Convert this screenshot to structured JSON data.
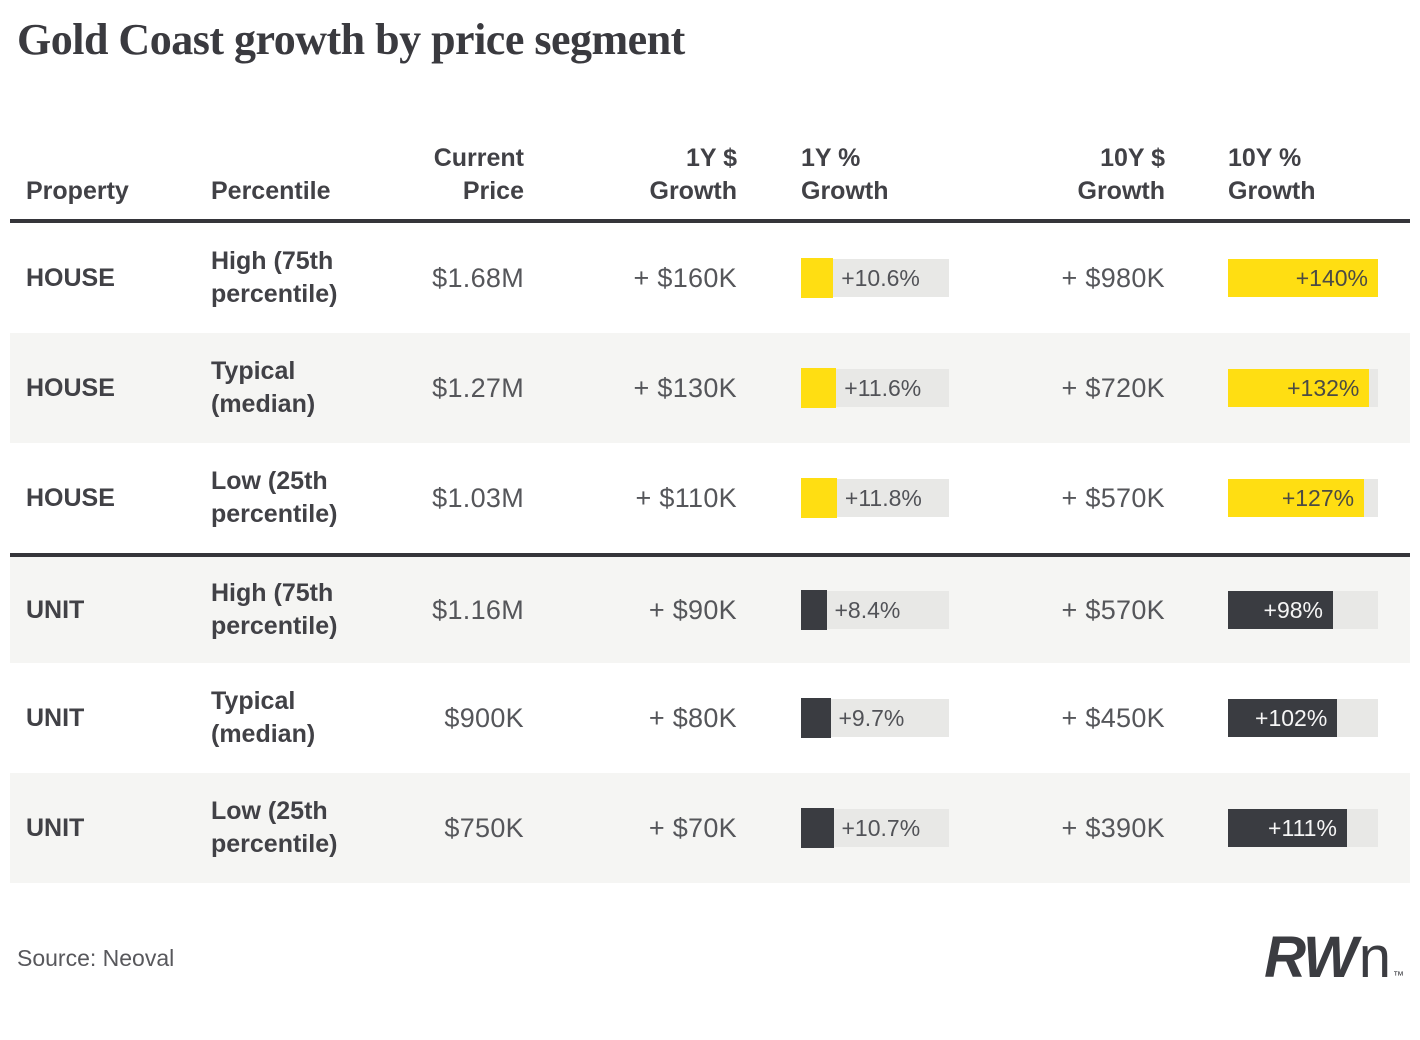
{
  "title": "Gold Coast growth by price segment",
  "source": "Source: Neoval",
  "logo": {
    "bold": "RW",
    "light": "n",
    "tm": "™"
  },
  "colors": {
    "house_bar": "#ffde12",
    "unit_bar": "#3a3c41",
    "bar_track": "#e8e8e6",
    "row_alt_bg": "#f5f5f3",
    "rule": "#35353a",
    "house_bar_label": "#4b4b44",
    "unit_bar_label": "#f5f5f5",
    "value_text": "#55565a",
    "heading_text": "#414146"
  },
  "header_cols": [
    {
      "line1": "",
      "line2": "Property"
    },
    {
      "line1": "",
      "line2": "Percentile"
    },
    {
      "line1": "Current",
      "line2": "Price"
    },
    {
      "line1": "1Y $",
      "line2": "Growth"
    },
    {
      "line1": "1Y %",
      "line2": "Growth"
    },
    {
      "line1": "10Y $",
      "line2": "Growth"
    },
    {
      "line1": "10Y %",
      "line2": "Growth"
    }
  ],
  "chart_data": {
    "type": "table",
    "title": "Gold Coast growth by price segment",
    "source": "Neoval",
    "columns": [
      "Property",
      "Percentile",
      "Current Price",
      "1Y $ Growth",
      "1Y % Growth",
      "10Y $ Growth",
      "10Y % Growth"
    ],
    "bar_scale_max": {
      "growth_1y_pct": 48.7,
      "growth_10y_pct": 140
    },
    "legend": "yellow bars = HOUSE, charcoal bars = UNIT",
    "rows": [
      {
        "property": "HOUSE",
        "segment": "house",
        "percentile": "High (75th percentile)",
        "current_price": "$1.68M",
        "growth_1y_dollar": "+ $160K",
        "growth_1y_pct": 10.6,
        "growth_1y_pct_label": "+10.6%",
        "growth_10y_dollar": "+ $980K",
        "growth_10y_pct": 140,
        "growth_10y_pct_label": "+140%"
      },
      {
        "property": "HOUSE",
        "segment": "house",
        "percentile": "Typical (median)",
        "current_price": "$1.27M",
        "growth_1y_dollar": "+ $130K",
        "growth_1y_pct": 11.6,
        "growth_1y_pct_label": "+11.6%",
        "growth_10y_dollar": "+ $720K",
        "growth_10y_pct": 132,
        "growth_10y_pct_label": "+132%"
      },
      {
        "property": "HOUSE",
        "segment": "house",
        "percentile": "Low (25th percentile)",
        "current_price": "$1.03M",
        "growth_1y_dollar": "+ $110K",
        "growth_1y_pct": 11.8,
        "growth_1y_pct_label": "+11.8%",
        "growth_10y_dollar": "+ $570K",
        "growth_10y_pct": 127,
        "growth_10y_pct_label": "+127%"
      },
      {
        "property": "UNIT",
        "segment": "unit",
        "percentile": "High (75th percentile)",
        "current_price": "$1.16M",
        "growth_1y_dollar": "+ $90K",
        "growth_1y_pct": 8.4,
        "growth_1y_pct_label": "+8.4%",
        "growth_10y_dollar": "+ $570K",
        "growth_10y_pct": 98,
        "growth_10y_pct_label": "+98%"
      },
      {
        "property": "UNIT",
        "segment": "unit",
        "percentile": "Typical (median)",
        "current_price": "$900K",
        "growth_1y_dollar": "+ $80K",
        "growth_1y_pct": 9.7,
        "growth_1y_pct_label": "+9.7%",
        "growth_10y_dollar": "+ $450K",
        "growth_10y_pct": 102,
        "growth_10y_pct_label": "+102%"
      },
      {
        "property": "UNIT",
        "segment": "unit",
        "percentile": "Low (25th percentile)",
        "current_price": "$750K",
        "growth_1y_dollar": "+ $70K",
        "growth_1y_pct": 10.7,
        "growth_1y_pct_label": "+10.7%",
        "growth_10y_dollar": "+ $390K",
        "growth_10y_pct": 111,
        "growth_10y_pct_label": "+111%"
      }
    ]
  }
}
